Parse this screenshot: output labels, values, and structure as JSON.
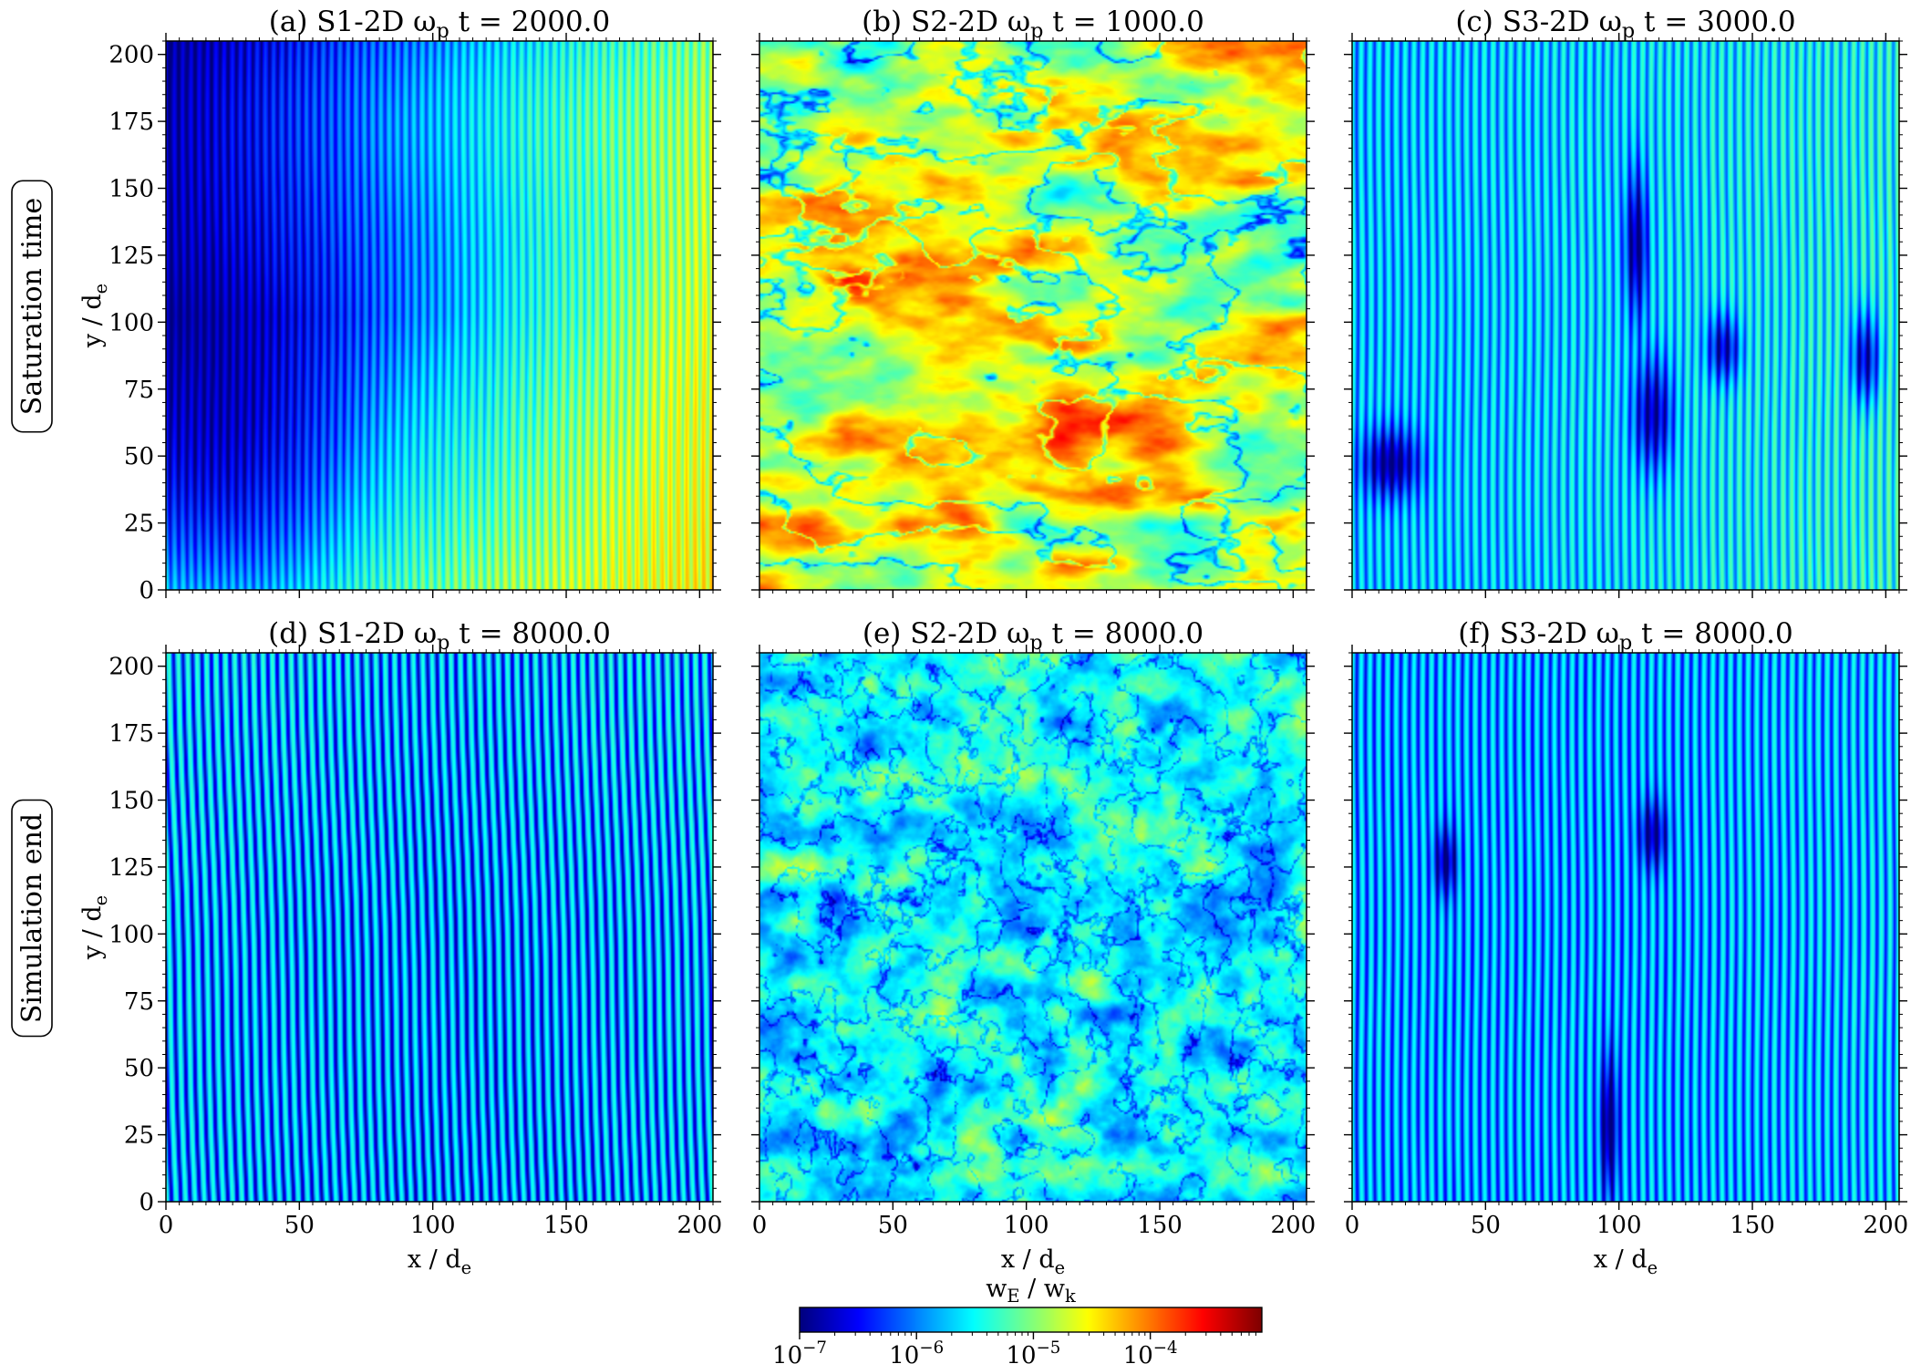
{
  "chart_data": {
    "type": "heatmap",
    "colormap": "jet",
    "colorbar": {
      "label": "w_E / w_k",
      "label_main": "w",
      "label_sub1": "E",
      "label_sep": " / ",
      "label_sub2": "k",
      "scale": "log",
      "range": [
        1e-07,
        0.0009
      ],
      "ticks": [
        {
          "base": "10",
          "exp": "−7",
          "value": 1e-07
        },
        {
          "base": "10",
          "exp": "−6",
          "value": 1e-06
        },
        {
          "base": "10",
          "exp": "−5",
          "value": 1e-05
        },
        {
          "base": "10",
          "exp": "−4",
          "value": 0.0001
        }
      ]
    },
    "row_labels": [
      "Saturation time",
      "Simulation end"
    ],
    "x_axis": {
      "label_main": "x / d",
      "label_sub": "e",
      "range": [
        0,
        205
      ],
      "ticks": [
        "0",
        "50",
        "100",
        "150",
        "200"
      ]
    },
    "y_axis": {
      "label_main": "y / d",
      "label_sub": "e",
      "range": [
        0,
        205
      ],
      "ticks": [
        "0",
        "25",
        "50",
        "75",
        "100",
        "125",
        "150",
        "175",
        "200"
      ]
    },
    "panels": [
      {
        "title_pre": "(a) S1-2D ω",
        "title_sub": "p",
        "title_post": "t = 2000.0",
        "pattern": "stripes",
        "n_stripes": 66,
        "stripe_tilt": 0,
        "stripe_amp_decades": 0.22,
        "background": [
          {
            "x": 0.0,
            "y": 0.0,
            "log10": -5.2
          },
          {
            "x": 0.5,
            "y": 0.0,
            "log10": -5.0
          },
          {
            "x": 1.0,
            "y": 0.0,
            "log10": -4.4
          },
          {
            "x": 0.0,
            "y": 0.5,
            "log10": -6.6
          },
          {
            "x": 0.5,
            "y": 0.5,
            "log10": -5.8
          },
          {
            "x": 1.0,
            "y": 0.5,
            "log10": -4.6
          },
          {
            "x": 0.0,
            "y": 1.0,
            "log10": -6.9
          },
          {
            "x": 0.5,
            "y": 1.0,
            "log10": -6.1
          },
          {
            "x": 1.0,
            "y": 1.0,
            "log10": -5.0
          }
        ],
        "blobs": [
          {
            "x": 0.12,
            "y": 0.82,
            "rx": 0.25,
            "ry": 0.35,
            "delta": -0.9
          },
          {
            "x": 0.55,
            "y": 0.12,
            "rx": 0.4,
            "ry": 0.2,
            "delta": 0.3
          }
        ]
      },
      {
        "title_pre": "(b) S2-2D ω",
        "title_sub": "p",
        "title_post": "t = 1000.0",
        "pattern": "turbulent",
        "mean_log10": -4.55,
        "spread_decades": 1.15,
        "scale_x": 0.018,
        "scale_y": 0.045,
        "seed": 3
      },
      {
        "title_pre": "(c) S3-2D ω",
        "title_sub": "p",
        "title_post": "t = 3000.0",
        "pattern": "stripes",
        "n_stripes": 62,
        "stripe_tilt": 0,
        "stripe_amp_decades": 0.3,
        "background": [
          {
            "x": 0.0,
            "y": 0.0,
            "log10": -5.7
          },
          {
            "x": 0.5,
            "y": 0.0,
            "log10": -5.6
          },
          {
            "x": 1.0,
            "y": 0.0,
            "log10": -5.3
          },
          {
            "x": 0.0,
            "y": 0.5,
            "log10": -5.7
          },
          {
            "x": 0.5,
            "y": 0.5,
            "log10": -5.6
          },
          {
            "x": 1.0,
            "y": 0.5,
            "log10": -5.4
          },
          {
            "x": 0.0,
            "y": 1.0,
            "log10": -5.7
          },
          {
            "x": 0.5,
            "y": 1.0,
            "log10": -5.6
          },
          {
            "x": 1.0,
            "y": 1.0,
            "log10": -5.4
          }
        ],
        "blobs": [
          {
            "x": 0.07,
            "y": 0.77,
            "rx": 0.05,
            "ry": 0.06,
            "delta": -1.3
          },
          {
            "x": 0.52,
            "y": 0.37,
            "rx": 0.02,
            "ry": 0.13,
            "delta": -1.3
          },
          {
            "x": 0.55,
            "y": 0.68,
            "rx": 0.035,
            "ry": 0.1,
            "delta": -1.2
          },
          {
            "x": 0.68,
            "y": 0.56,
            "rx": 0.03,
            "ry": 0.06,
            "delta": -1.1
          },
          {
            "x": 0.94,
            "y": 0.58,
            "rx": 0.025,
            "ry": 0.08,
            "delta": -1.2
          }
        ]
      },
      {
        "title_pre": "(d) S1-2D ω",
        "title_sub": "p",
        "title_post": "t = 8000.0",
        "pattern": "stripes",
        "n_stripes": 58,
        "stripe_tilt": 0.03,
        "stripe_amp_decades": 0.45,
        "background": [
          {
            "x": 0.0,
            "y": 0.0,
            "log10": -5.8
          },
          {
            "x": 0.5,
            "y": 0.0,
            "log10": -5.9
          },
          {
            "x": 1.0,
            "y": 0.0,
            "log10": -5.8
          },
          {
            "x": 0.0,
            "y": 0.5,
            "log10": -5.8
          },
          {
            "x": 0.5,
            "y": 0.5,
            "log10": -5.9
          },
          {
            "x": 1.0,
            "y": 0.5,
            "log10": -5.8
          },
          {
            "x": 0.0,
            "y": 1.0,
            "log10": -5.7
          },
          {
            "x": 0.5,
            "y": 1.0,
            "log10": -5.8
          },
          {
            "x": 1.0,
            "y": 1.0,
            "log10": -5.7
          }
        ],
        "blobs": []
      },
      {
        "title_pre": "(e) S2-2D ω",
        "title_sub": "p",
        "title_post": "t = 8000.0",
        "pattern": "turbulent",
        "mean_log10": -5.45,
        "spread_decades": 0.85,
        "scale_x": 0.05,
        "scale_y": 0.06,
        "seed": 11
      },
      {
        "title_pre": "(f) S3-2D ω",
        "title_sub": "p",
        "title_post": "t = 8000.0",
        "pattern": "stripes",
        "n_stripes": 62,
        "stripe_tilt": 0,
        "stripe_amp_decades": 0.35,
        "background": [
          {
            "x": 0.0,
            "y": 0.0,
            "log10": -5.8
          },
          {
            "x": 0.5,
            "y": 0.0,
            "log10": -5.8
          },
          {
            "x": 1.0,
            "y": 0.0,
            "log10": -5.7
          },
          {
            "x": 0.0,
            "y": 0.5,
            "log10": -5.8
          },
          {
            "x": 0.5,
            "y": 0.5,
            "log10": -5.8
          },
          {
            "x": 1.0,
            "y": 0.5,
            "log10": -5.7
          },
          {
            "x": 0.0,
            "y": 1.0,
            "log10": -5.8
          },
          {
            "x": 0.5,
            "y": 1.0,
            "log10": -5.8
          },
          {
            "x": 1.0,
            "y": 1.0,
            "log10": -5.7
          }
        ],
        "blobs": [
          {
            "x": 0.17,
            "y": 0.38,
            "rx": 0.02,
            "ry": 0.06,
            "delta": -1.1
          },
          {
            "x": 0.55,
            "y": 0.33,
            "rx": 0.025,
            "ry": 0.06,
            "delta": -1.1
          },
          {
            "x": 0.47,
            "y": 0.86,
            "rx": 0.015,
            "ry": 0.12,
            "delta": -1.3
          }
        ]
      }
    ]
  }
}
